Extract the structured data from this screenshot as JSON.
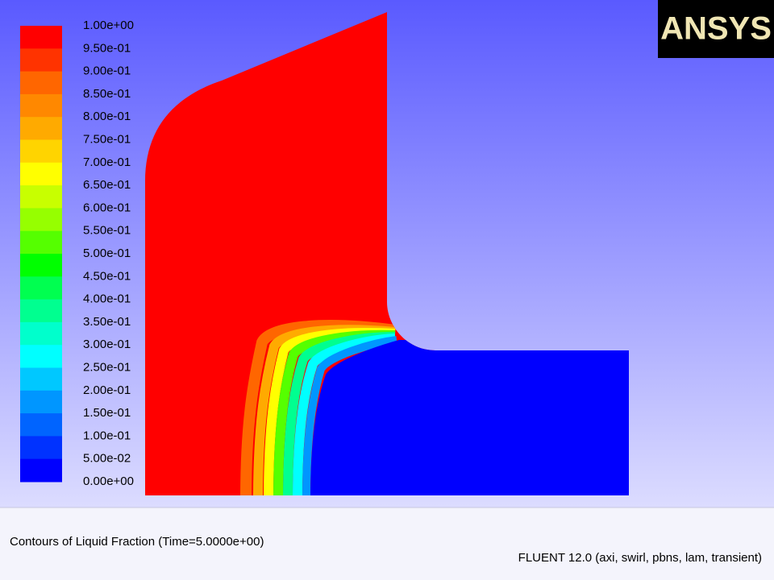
{
  "colorbar": {
    "labels": [
      "1.00e+00",
      "9.50e-01",
      "9.00e-01",
      "8.50e-01",
      "8.00e-01",
      "7.50e-01",
      "7.00e-01",
      "6.50e-01",
      "6.00e-01",
      "5.50e-01",
      "5.00e-01",
      "4.50e-01",
      "4.00e-01",
      "3.50e-01",
      "3.00e-01",
      "2.50e-01",
      "2.00e-01",
      "1.50e-01",
      "1.00e-01",
      "5.00e-02",
      "0.00e+00"
    ],
    "colors": [
      "#ff0000",
      "#ff3300",
      "#ff6600",
      "#ff8800",
      "#ffaa00",
      "#ffd400",
      "#ffff00",
      "#c8ff00",
      "#96ff00",
      "#55ff00",
      "#00ff00",
      "#00ff50",
      "#00ff90",
      "#00ffcc",
      "#00ffff",
      "#00c8ff",
      "#0096ff",
      "#0064ff",
      "#0032ff",
      "#0000ff"
    ]
  },
  "logo": "ANSYS",
  "caption": "Contours of Liquid Fraction  (Time=5.0000e+00)",
  "footer": "FLUENT 12.0 (axi, swirl, pbns, lam, transient)"
}
